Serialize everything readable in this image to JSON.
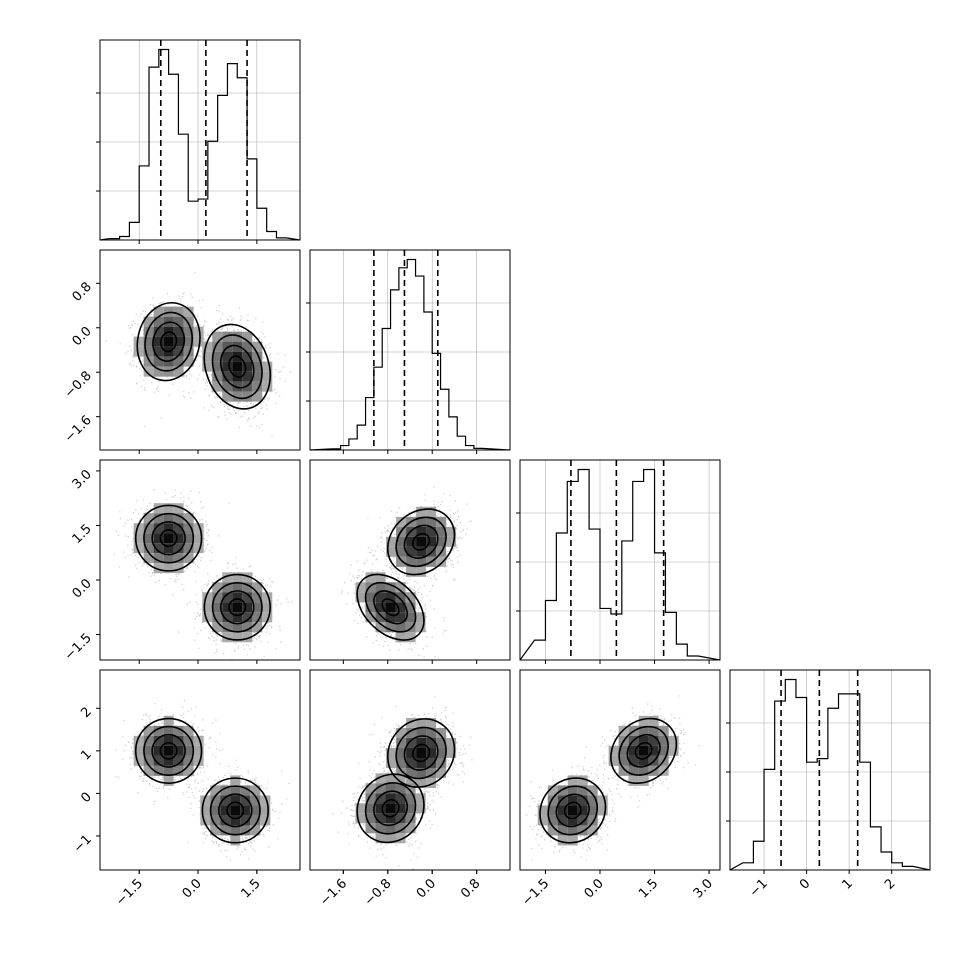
{
  "chart_data": {
    "type": "corner",
    "n_params": 4,
    "colors": {
      "line": "#000000",
      "grid": "#b0b0b0",
      "scatter": "#9a9a9a"
    },
    "params": [
      {
        "index": 0,
        "range": [
          -2.5,
          2.6
        ],
        "ticks": [
          -1.5,
          0.0,
          1.5
        ],
        "tick_labels": [
          "−1.5",
          "0.0",
          "1.5"
        ]
      },
      {
        "index": 1,
        "range": [
          -2.2,
          1.4
        ],
        "ticks": [
          -1.6,
          -0.8,
          0.0,
          0.8
        ],
        "tick_labels": [
          "−1.6",
          "−0.8",
          "0.0",
          "0.8"
        ]
      },
      {
        "index": 2,
        "range": [
          -2.2,
          3.3
        ],
        "ticks": [
          -1.5,
          0.0,
          1.5,
          3.0
        ],
        "tick_labels": [
          "−1.5",
          "0.0",
          "1.5",
          "3.0"
        ]
      },
      {
        "index": 3,
        "range": [
          -1.8,
          2.9
        ],
        "ticks": [
          -1,
          0,
          1,
          2
        ],
        "tick_labels": [
          "−1",
          "0",
          "1",
          "2"
        ]
      }
    ],
    "diagonal_histograms": [
      {
        "param": 0,
        "bin_edges": [
          -2.25,
          -2.0,
          -1.75,
          -1.5,
          -1.25,
          -1.0,
          -0.75,
          -0.5,
          -0.25,
          0.0,
          0.25,
          0.5,
          0.75,
          1.0,
          1.25,
          1.5,
          1.75,
          2.0,
          2.25
        ],
        "counts": [
          2,
          5,
          25,
          105,
          245,
          270,
          235,
          150,
          55,
          58,
          140,
          205,
          250,
          230,
          115,
          45,
          12,
          3
        ],
        "quantiles": [
          -0.95,
          0.2,
          1.25
        ]
      },
      {
        "param": 1,
        "bin_edges": [
          -1.8,
          -1.65,
          -1.5,
          -1.35,
          -1.2,
          -1.05,
          -0.9,
          -0.75,
          -0.6,
          -0.45,
          -0.3,
          -0.15,
          0.0,
          0.15,
          0.3,
          0.45,
          0.6,
          0.75,
          0.9
        ],
        "counts": [
          2,
          8,
          20,
          45,
          95,
          150,
          220,
          290,
          330,
          345,
          315,
          250,
          175,
          110,
          60,
          25,
          8,
          3
        ],
        "quantiles": [
          -1.05,
          -0.5,
          0.1
        ]
      },
      {
        "param": 2,
        "bin_edges": [
          -1.8,
          -1.5,
          -1.2,
          -0.9,
          -0.6,
          -0.3,
          0.0,
          0.3,
          0.6,
          0.9,
          1.2,
          1.5,
          1.8,
          2.1,
          2.4,
          2.7
        ],
        "counts": [
          25,
          75,
          160,
          225,
          240,
          165,
          65,
          58,
          150,
          225,
          240,
          135,
          60,
          20,
          5
        ],
        "quantiles": [
          -0.8,
          0.45,
          1.75
        ]
      },
      {
        "param": 3,
        "bin_edges": [
          -1.5,
          -1.25,
          -1.0,
          -0.75,
          -0.5,
          -0.25,
          0.0,
          0.25,
          0.5,
          0.75,
          1.0,
          1.25,
          1.5,
          1.75,
          2.0,
          2.25,
          2.5
        ],
        "counts": [
          10,
          40,
          140,
          235,
          265,
          240,
          150,
          155,
          225,
          245,
          245,
          150,
          60,
          25,
          10,
          5
        ],
        "quantiles": [
          -0.6,
          0.3,
          1.2
        ]
      }
    ],
    "scatter_panels": [
      {
        "row": 1,
        "col": 0,
        "components": [
          {
            "mx": -0.75,
            "my": -0.25,
            "sx": 0.4,
            "sy": 0.35,
            "rho": 0.1
          },
          {
            "mx": 1.0,
            "my": -0.7,
            "sx": 0.42,
            "sy": 0.38,
            "rho": -0.2
          }
        ]
      },
      {
        "row": 2,
        "col": 0,
        "components": [
          {
            "mx": -0.75,
            "my": 1.15,
            "sx": 0.42,
            "sy": 0.45,
            "rho": 0.0
          },
          {
            "mx": 1.0,
            "my": -0.75,
            "sx": 0.42,
            "sy": 0.45,
            "rho": 0.0
          }
        ]
      },
      {
        "row": 2,
        "col": 1,
        "components": [
          {
            "mx": -0.2,
            "my": 1.05,
            "sx": 0.3,
            "sy": 0.45,
            "rho": 0.2
          },
          {
            "mx": -0.75,
            "my": -0.75,
            "sx": 0.3,
            "sy": 0.45,
            "rho": -0.4
          }
        ]
      },
      {
        "row": 3,
        "col": 0,
        "components": [
          {
            "mx": -0.75,
            "my": 1.0,
            "sx": 0.42,
            "sy": 0.38,
            "rho": 0.0
          },
          {
            "mx": 0.95,
            "my": -0.4,
            "sx": 0.42,
            "sy": 0.38,
            "rho": 0.0
          }
        ]
      },
      {
        "row": 3,
        "col": 1,
        "components": [
          {
            "mx": -0.2,
            "my": 0.95,
            "sx": 0.3,
            "sy": 0.4,
            "rho": 0.1
          },
          {
            "mx": -0.75,
            "my": -0.35,
            "sx": 0.3,
            "sy": 0.4,
            "rho": 0.1
          }
        ]
      },
      {
        "row": 3,
        "col": 2,
        "components": [
          {
            "mx": -0.75,
            "my": -0.4,
            "sx": 0.45,
            "sy": 0.38,
            "rho": 0.1
          },
          {
            "mx": 1.2,
            "my": 1.0,
            "sx": 0.45,
            "sy": 0.38,
            "rho": 0.2
          }
        ]
      }
    ],
    "grid": true,
    "contour_levels": [
      0.118,
      0.393,
      0.675,
      0.865
    ]
  }
}
